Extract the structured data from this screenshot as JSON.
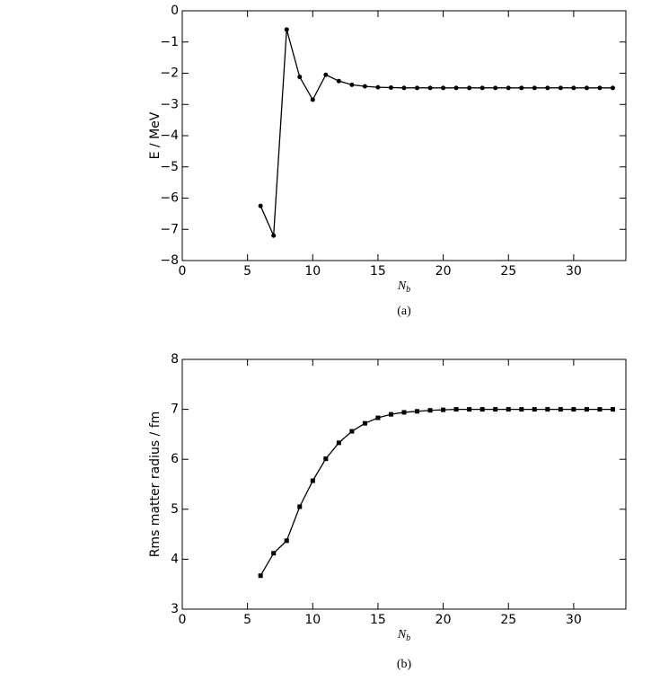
{
  "chart_data": [
    {
      "type": "line",
      "caption": "(a)",
      "y_label": "E / MeV",
      "x_label": {
        "main": "N",
        "sub": "b"
      },
      "x": [
        6,
        7,
        8,
        9,
        10,
        11,
        12,
        13,
        14,
        15,
        16,
        17,
        18,
        19,
        20,
        21,
        22,
        23,
        24,
        25,
        26,
        27,
        28,
        29,
        30,
        31,
        32,
        33
      ],
      "series": [
        {
          "color": "#000000",
          "marker": "circle",
          "values": [
            -6.25,
            -7.2,
            -0.6,
            -2.12,
            -2.85,
            -2.05,
            -2.25,
            -2.37,
            -2.42,
            -2.45,
            -2.46,
            -2.47,
            -2.47,
            -2.47,
            -2.47,
            -2.47,
            -2.47,
            -2.47,
            -2.47,
            -2.47,
            -2.47,
            -2.47,
            -2.47,
            -2.47,
            -2.47,
            -2.47,
            -2.47,
            -2.47
          ]
        }
      ],
      "xlim": [
        0,
        34
      ],
      "xticks": [
        0,
        5,
        10,
        15,
        20,
        25,
        30
      ],
      "ylim": [
        -8,
        0
      ],
      "yticks": [
        0,
        {
          "value": -1,
          "label": "−1"
        },
        {
          "value": -2,
          "label": "−2"
        },
        {
          "value": -3,
          "label": "−3"
        },
        {
          "value": -4,
          "label": "−4"
        },
        {
          "value": -5,
          "label": "−5"
        },
        {
          "value": -6,
          "label": "−6"
        },
        {
          "value": -7,
          "label": "−7"
        },
        {
          "value": -8,
          "label": "−8"
        }
      ]
    },
    {
      "type": "line",
      "caption": "(b)",
      "y_label": "Rms matter radius / fm",
      "x_label": {
        "main": "N",
        "sub": "b"
      },
      "x": [
        6,
        7,
        8,
        9,
        10,
        11,
        12,
        13,
        14,
        15,
        16,
        17,
        18,
        19,
        20,
        21,
        22,
        23,
        24,
        25,
        26,
        27,
        28,
        29,
        30,
        31,
        32,
        33
      ],
      "series": [
        {
          "color": "#000000",
          "marker": "square",
          "values": [
            3.67,
            4.12,
            4.37,
            5.05,
            5.57,
            6.01,
            6.33,
            6.56,
            6.72,
            6.83,
            6.9,
            6.94,
            6.96,
            6.98,
            6.99,
            7.0,
            7.0,
            7.0,
            7.0,
            7.0,
            7.0,
            7.0,
            7.0,
            7.0,
            7.0,
            7.0,
            7.0,
            7.0
          ]
        }
      ],
      "xlim": [
        0,
        34
      ],
      "xticks": [
        0,
        5,
        10,
        15,
        20,
        25,
        30
      ],
      "ylim": [
        3,
        8
      ],
      "yticks": [
        3,
        4,
        5,
        6,
        7,
        8
      ]
    }
  ]
}
